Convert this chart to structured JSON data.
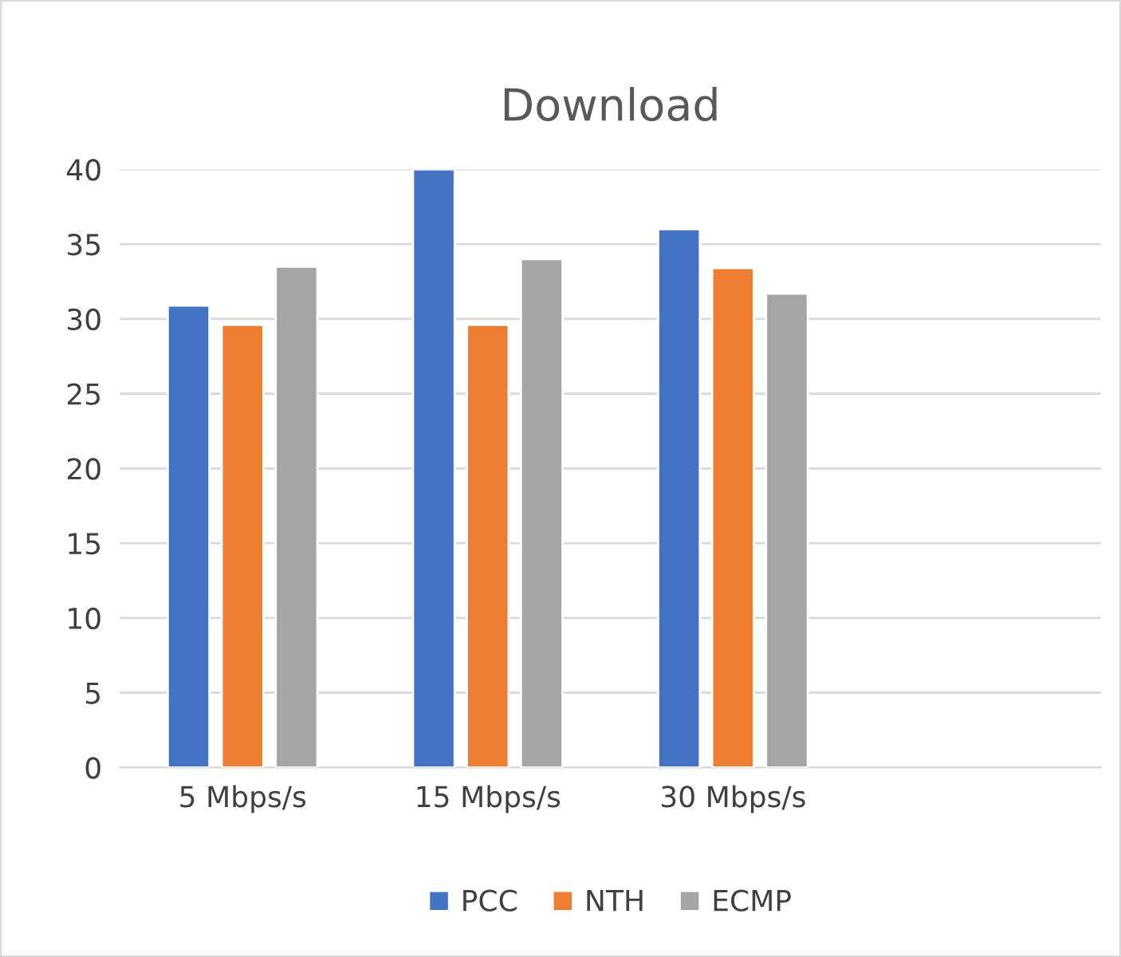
{
  "chart_data": {
    "type": "bar",
    "title": "Download",
    "categories": [
      "5 Mbps/s",
      "15 Mbps/s",
      "30 Mbps/s",
      null
    ],
    "series": [
      {
        "name": "PCC",
        "color": "#4472c4",
        "values": [
          30.9,
          40,
          36.0,
          null
        ]
      },
      {
        "name": "NTH",
        "color": "#ed7d31",
        "values": [
          29.6,
          29.6,
          33.4,
          null
        ]
      },
      {
        "name": "ECMP",
        "color": "#a5a5a5",
        "values": [
          33.5,
          34.0,
          31.7,
          null
        ]
      }
    ],
    "ylim": [
      0,
      40
    ],
    "yticks": [
      0,
      5,
      10,
      15,
      20,
      25,
      30,
      35,
      40
    ],
    "grid": "y",
    "legend": "bottom"
  }
}
